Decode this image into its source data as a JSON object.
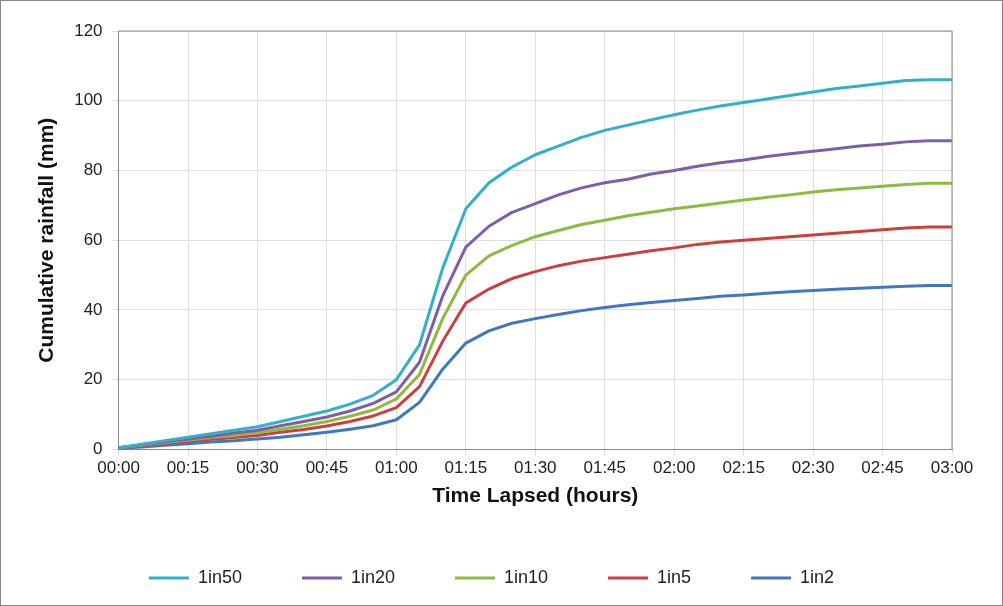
{
  "chart_data": {
    "type": "line",
    "xlabel": "Time Lapsed (hours)",
    "ylabel": "Cumulative rainfall (mm)",
    "x": [
      0,
      0.0833,
      0.1667,
      0.25,
      0.3333,
      0.4167,
      0.5,
      0.5833,
      0.6667,
      0.75,
      0.8333,
      0.9167,
      1,
      1.0833,
      1.1667,
      1.25,
      1.3333,
      1.4167,
      1.5,
      1.5833,
      1.6667,
      1.75,
      1.8333,
      1.9167,
      2,
      2.0833,
      2.1667,
      2.25,
      2.3333,
      2.4167,
      2.5,
      2.5833,
      2.6667,
      2.75,
      2.8333,
      2.9167,
      3
    ],
    "xlim": [
      0,
      3
    ],
    "xticks": [
      {
        "value": 0,
        "label": "00:00"
      },
      {
        "value": 0.25,
        "label": "00:15"
      },
      {
        "value": 0.5,
        "label": "00:30"
      },
      {
        "value": 0.75,
        "label": "00:45"
      },
      {
        "value": 1,
        "label": "01:00"
      },
      {
        "value": 1.25,
        "label": "01:15"
      },
      {
        "value": 1.5,
        "label": "01:30"
      },
      {
        "value": 1.75,
        "label": "01:45"
      },
      {
        "value": 2,
        "label": "02:00"
      },
      {
        "value": 2.25,
        "label": "02:15"
      },
      {
        "value": 2.5,
        "label": "02:30"
      },
      {
        "value": 2.75,
        "label": "02:45"
      },
      {
        "value": 3,
        "label": "03:00"
      }
    ],
    "ylim": [
      0,
      120
    ],
    "yticks": [
      0,
      20,
      40,
      60,
      80,
      100,
      120
    ],
    "grid": true,
    "legend": "bottom",
    "marker": "none",
    "line_style": "solid",
    "series": [
      {
        "name": "1in50",
        "color": "#31b0cc",
        "values": [
          0.5,
          1.5,
          2.5,
          3.5,
          4.5,
          5.5,
          6.5,
          8,
          9.5,
          11,
          13,
          15.5,
          20,
          30,
          52,
          69,
          76.5,
          81,
          84.5,
          87,
          89.5,
          91.5,
          93,
          94.5,
          96,
          97.3,
          98.5,
          99.5,
          100.5,
          101.5,
          102.5,
          103.5,
          104.2,
          105,
          105.8,
          106,
          106
        ]
      },
      {
        "name": "1in20",
        "color": "#7e5ea8",
        "values": [
          0.5,
          1.3,
          2.2,
          3,
          3.8,
          4.7,
          5.5,
          6.8,
          8,
          9.3,
          11,
          13.2,
          16.5,
          25,
          44,
          58,
          64,
          68,
          70.5,
          73,
          75,
          76.5,
          77.5,
          79,
          80,
          81.2,
          82.2,
          83,
          84,
          84.8,
          85.5,
          86.2,
          87,
          87.5,
          88.2,
          88.5,
          88.5
        ]
      },
      {
        "name": "1in10",
        "color": "#8cbb3f",
        "values": [
          0.5,
          1.2,
          2,
          2.7,
          3.4,
          4,
          4.8,
          5.8,
          6.8,
          8,
          9.5,
          11.3,
          14.5,
          21.5,
          37.5,
          50,
          55.5,
          58.5,
          61,
          62.8,
          64.5,
          65.7,
          67,
          68,
          69,
          69.8,
          70.7,
          71.5,
          72.3,
          73,
          73.8,
          74.5,
          75,
          75.5,
          76,
          76.3,
          76.3
        ]
      },
      {
        "name": "1in5",
        "color": "#cc3f3c",
        "values": [
          0.4,
          1,
          1.7,
          2.3,
          2.9,
          3.4,
          4,
          4.9,
          5.7,
          6.7,
          8,
          9.6,
          12,
          18,
          31,
          42,
          46,
          49,
          51,
          52.7,
          54,
          55,
          56,
          57,
          57.8,
          58.8,
          59.5,
          60,
          60.5,
          61,
          61.5,
          62,
          62.5,
          63,
          63.5,
          63.8,
          63.8
        ]
      },
      {
        "name": "1in2",
        "color": "#3f77c1",
        "values": [
          0.3,
          0.7,
          1.2,
          1.6,
          2.1,
          2.5,
          3,
          3.5,
          4.2,
          4.9,
          5.8,
          6.8,
          8.5,
          13.5,
          23,
          30.5,
          34,
          36.2,
          37.5,
          38.7,
          39.8,
          40.7,
          41.5,
          42.1,
          42.7,
          43.3,
          43.9,
          44.3,
          44.8,
          45.2,
          45.6,
          45.9,
          46.2,
          46.5,
          46.8,
          47,
          47
        ]
      }
    ]
  }
}
